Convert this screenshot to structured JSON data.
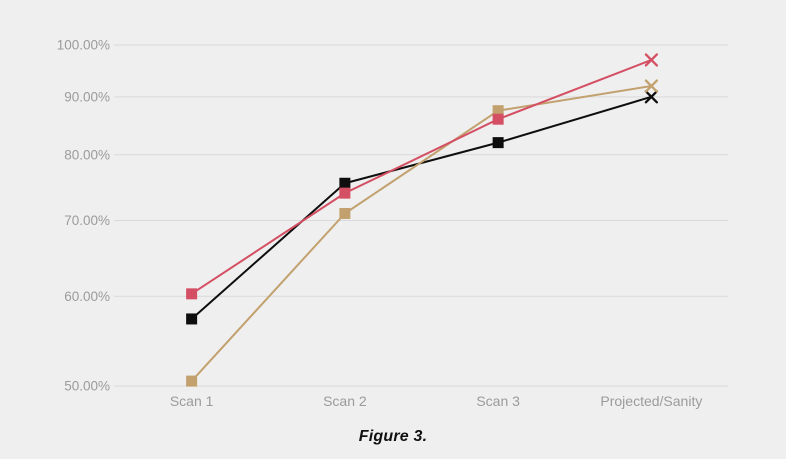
{
  "page": {
    "background_color": "#efefef"
  },
  "caption": {
    "text": "Figure 3."
  },
  "style": {
    "grid_color": "#d9d9d9",
    "axis_label_color": "#9b9b9b",
    "caption_color": "#111111"
  },
  "chart_data": {
    "type": "line",
    "title": "",
    "xlabel": "",
    "ylabel": "",
    "categories": [
      "Scan 1",
      "Scan 2",
      "Scan 3",
      "Projected/Sanity"
    ],
    "series": [
      {
        "name": "black-series",
        "color": "#0e0e0e",
        "values": [
          57.3,
          75.5,
          82,
          90
        ]
      },
      {
        "name": "tan-series",
        "color": "#c2a16e",
        "values": [
          50.5,
          71,
          87.5,
          92
        ]
      },
      {
        "name": "crimson-series",
        "color": "#d44f63",
        "values": [
          60.3,
          74,
          86,
          97
        ]
      }
    ],
    "y_axis": {
      "scale": "log",
      "min": 50,
      "max": 100,
      "tick_values": [
        100,
        90,
        80,
        70,
        60,
        50
      ],
      "tick_labels": [
        "100.00%",
        "90.00%",
        "80.00%",
        "70.00%",
        "60.00%",
        "50.00%"
      ]
    },
    "markers": {
      "scan_points": "square",
      "projected_point": "x-cross"
    },
    "grid": true,
    "legend": "none"
  }
}
